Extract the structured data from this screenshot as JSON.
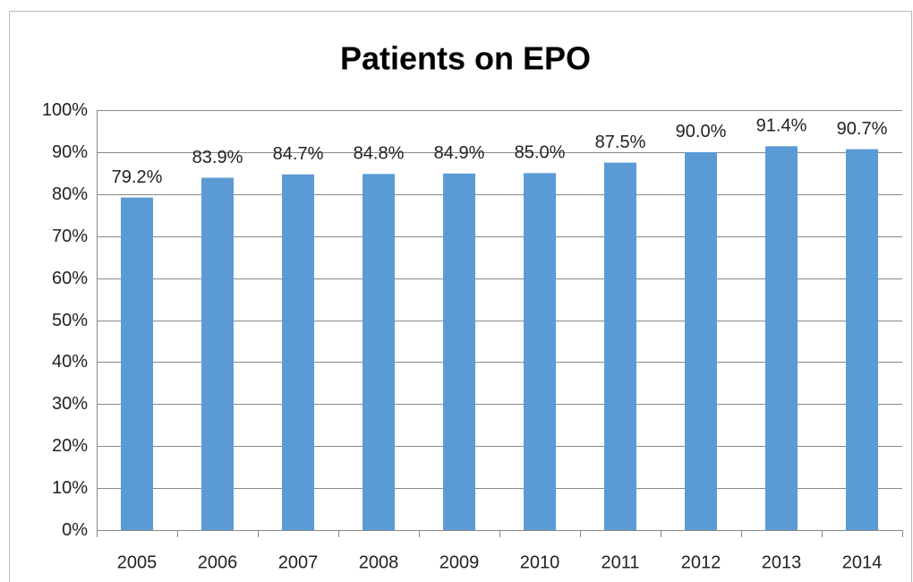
{
  "chart_data": {
    "type": "bar",
    "title": "Patients on EPO",
    "categories": [
      "2005",
      "2006",
      "2007",
      "2008",
      "2009",
      "2010",
      "2011",
      "2012",
      "2013",
      "2014"
    ],
    "values": [
      79.2,
      83.9,
      84.7,
      84.8,
      84.9,
      85.0,
      87.5,
      90.0,
      91.4,
      90.7
    ],
    "value_labels": [
      "79.2%",
      "83.9%",
      "84.7%",
      "84.8%",
      "84.9%",
      "85.0%",
      "87.5%",
      "90.0%",
      "91.4%",
      "90.7%"
    ],
    "color": "#5b9bd5",
    "ylim": [
      0,
      100
    ],
    "yticks": [
      {
        "value": 0,
        "label": "0%"
      },
      {
        "value": 10,
        "label": "10%"
      },
      {
        "value": 20,
        "label": "20%"
      },
      {
        "value": 30,
        "label": "30%"
      },
      {
        "value": 40,
        "label": "40%"
      },
      {
        "value": 50,
        "label": "50%"
      },
      {
        "value": 60,
        "label": "60%"
      },
      {
        "value": 70,
        "label": "70%"
      },
      {
        "value": 80,
        "label": "80%"
      },
      {
        "value": 90,
        "label": "90%"
      },
      {
        "value": 100,
        "label": "100%"
      }
    ],
    "grid": true
  }
}
